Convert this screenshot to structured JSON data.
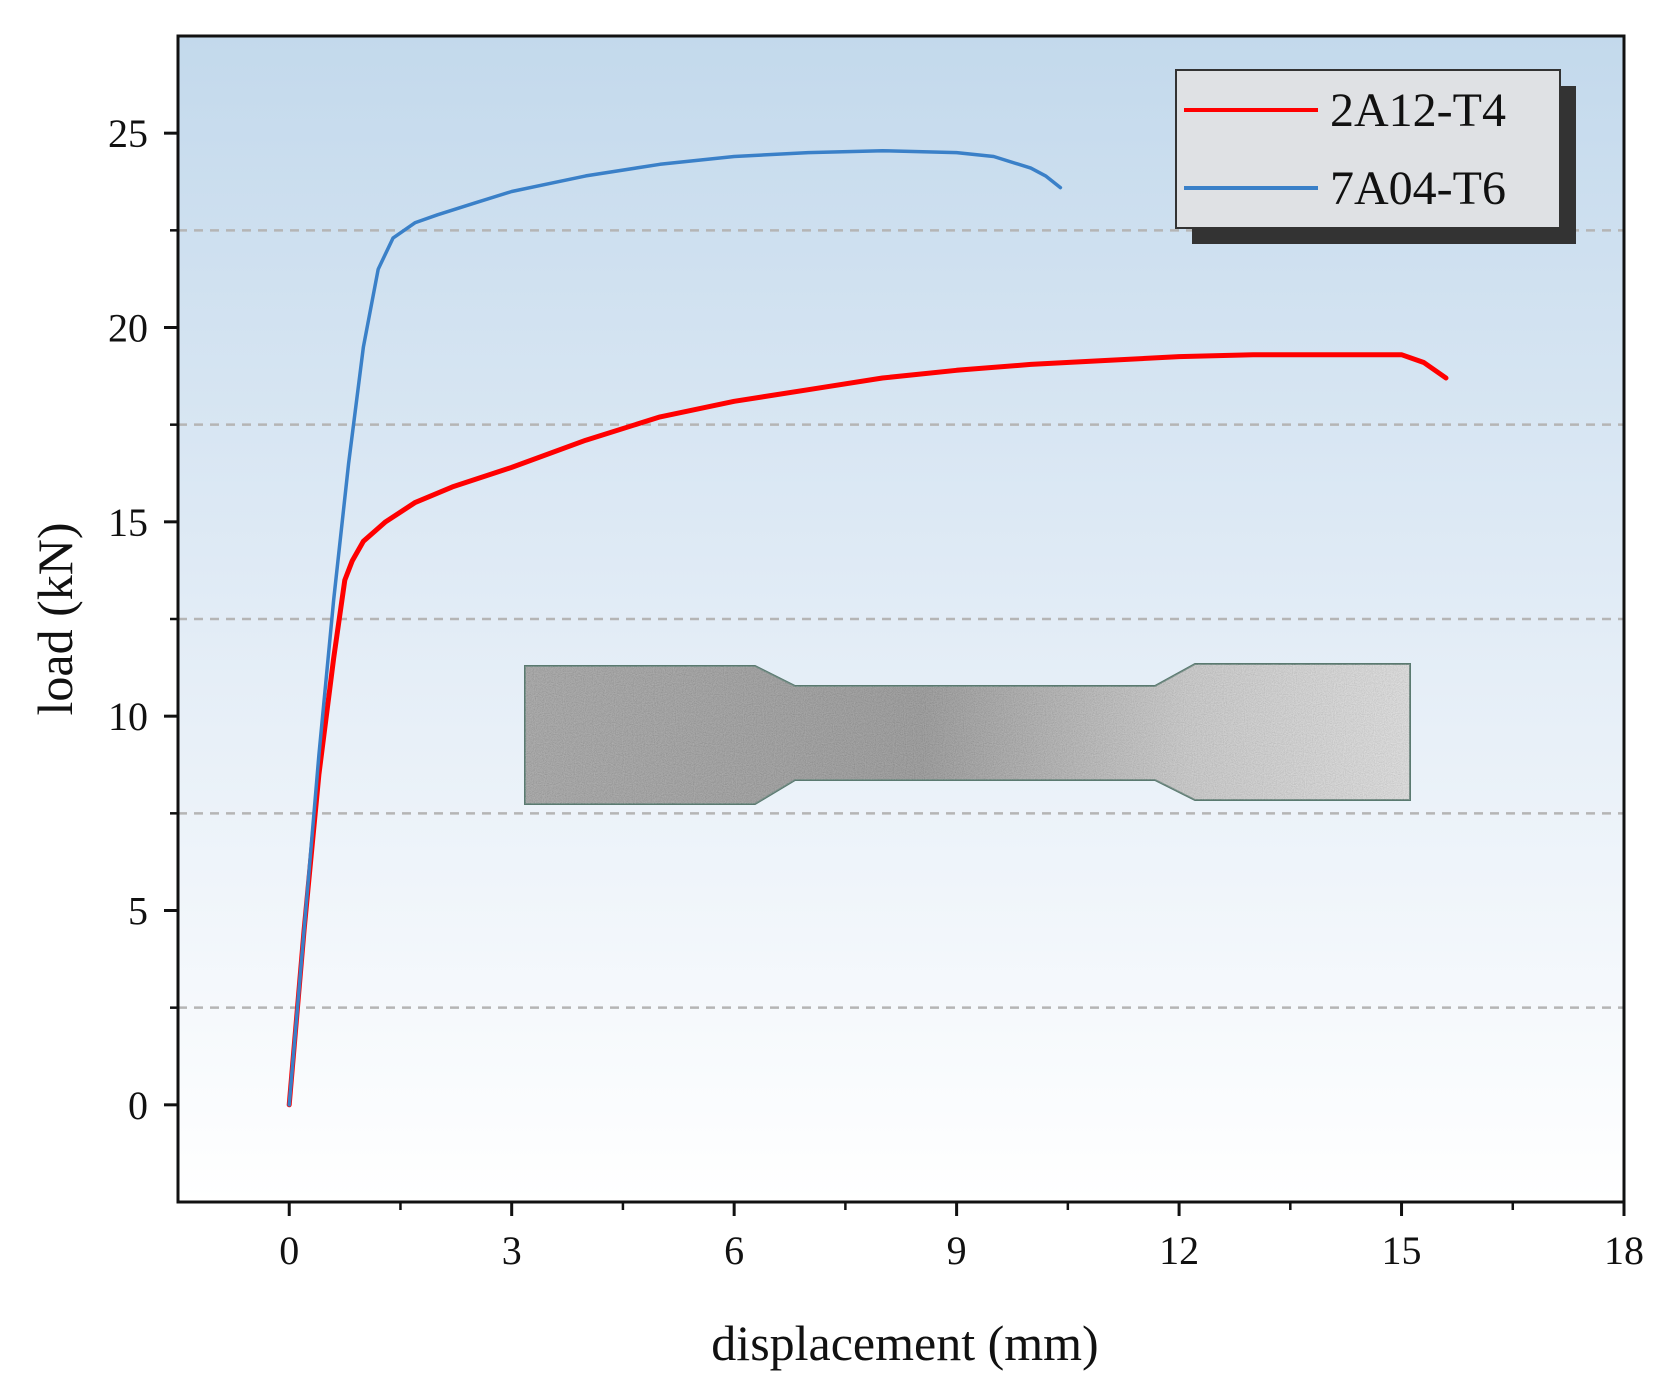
{
  "chart_data": {
    "type": "line",
    "title": "",
    "xlabel": "displacement (mm)",
    "ylabel": "load (kN)",
    "xlim": [
      -1.5,
      18
    ],
    "ylim": [
      -2.5,
      27.5
    ],
    "xticks": [
      0,
      3,
      6,
      9,
      12,
      15,
      18
    ],
    "yticks": [
      0,
      5,
      10,
      15,
      20,
      25
    ],
    "grid": "horizontal dashed lines at 2.5, 7.5, 12.5, 17.5, 22.5",
    "legend_position": "top-right",
    "background": "gradient light blue (top) to white (bottom)",
    "inset": "photograph of dog-bone tensile specimen",
    "series": [
      {
        "name": "2A12-T4",
        "color": "#ff0000",
        "x": [
          0.0,
          0.2,
          0.4,
          0.6,
          0.75,
          0.85,
          1.0,
          1.3,
          1.7,
          2.2,
          3.0,
          4.0,
          5.0,
          6.0,
          7.0,
          8.0,
          9.0,
          10.0,
          11.0,
          12.0,
          13.0,
          14.0,
          15.0,
          15.3,
          15.6
        ],
        "values": [
          0.0,
          4.5,
          8.5,
          11.5,
          13.5,
          14.0,
          14.5,
          15.0,
          15.5,
          15.9,
          16.4,
          17.1,
          17.7,
          18.1,
          18.4,
          18.7,
          18.9,
          19.05,
          19.15,
          19.25,
          19.3,
          19.3,
          19.3,
          19.1,
          18.7
        ]
      },
      {
        "name": "7A04-T6",
        "color": "#3a80c8",
        "x": [
          0.0,
          0.2,
          0.4,
          0.6,
          0.8,
          1.0,
          1.2,
          1.4,
          1.7,
          2.0,
          2.5,
          3.0,
          3.5,
          4.0,
          5.0,
          6.0,
          7.0,
          8.0,
          9.0,
          9.5,
          10.0,
          10.2,
          10.4
        ],
        "values": [
          0.0,
          4.5,
          9.0,
          13.0,
          16.5,
          19.5,
          21.5,
          22.3,
          22.7,
          22.9,
          23.2,
          23.5,
          23.7,
          23.9,
          24.2,
          24.4,
          24.5,
          24.55,
          24.5,
          24.4,
          24.1,
          23.9,
          23.6
        ]
      }
    ]
  }
}
